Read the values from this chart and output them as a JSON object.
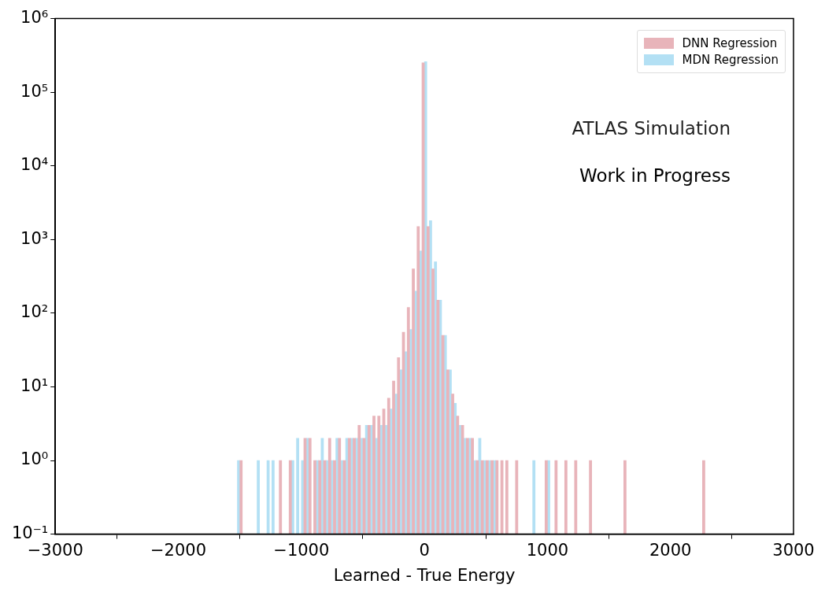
{
  "chart_data": {
    "type": "histogram",
    "xlabel": "Learned - True Energy",
    "bins": [
      -1580,
      -1540,
      -1500,
      -1460,
      -1420,
      -1380,
      -1340,
      -1300,
      -1260,
      -1220,
      -1180,
      -1140,
      -1100,
      -1060,
      -1020,
      -980,
      -940,
      -900,
      -860,
      -820,
      -780,
      -740,
      -700,
      -660,
      -620,
      -580,
      -540,
      -500,
      -460,
      -420,
      -380,
      -340,
      -300,
      -260,
      -220,
      -180,
      -140,
      -100,
      -60,
      -20,
      20,
      60,
      100,
      140,
      180,
      220,
      260,
      300,
      340,
      380,
      420,
      460,
      500,
      540,
      580,
      620,
      660,
      700,
      740,
      780,
      820,
      860,
      900,
      940,
      980,
      1020,
      1060,
      1100,
      1140,
      1180,
      1220,
      1260,
      1300,
      1340,
      1380,
      1420,
      1460,
      1500,
      1540,
      1580,
      1620,
      1660,
      1700,
      1740,
      1780,
      1820,
      1860,
      1900,
      1940,
      1980,
      2020,
      2060,
      2100,
      2140,
      2180,
      2220,
      2260,
      2300
    ],
    "series": [
      {
        "name": "DNN Regression",
        "color": "#e8b4ba",
        "values": [
          null,
          null,
          1,
          null,
          null,
          null,
          null,
          null,
          null,
          null,
          1,
          null,
          1,
          null,
          null,
          2,
          2,
          1,
          1,
          1,
          2,
          1,
          2,
          1,
          2,
          2,
          3,
          2,
          3,
          4,
          4,
          5,
          7,
          12,
          25,
          55,
          120,
          400,
          1500,
          250000,
          1500,
          400,
          150,
          50,
          17,
          8,
          4,
          3,
          2,
          2,
          1,
          1,
          1,
          1,
          1,
          1,
          1,
          null,
          1,
          null,
          null,
          null,
          null,
          null,
          1,
          null,
          1,
          null,
          1,
          null,
          1,
          null,
          null,
          1,
          null,
          null,
          null,
          null,
          null,
          null,
          1,
          null,
          null,
          null,
          null,
          null,
          null,
          null,
          null,
          null,
          null,
          null,
          null,
          null,
          null,
          null,
          1
        ]
      },
      {
        "name": "MDN Regression",
        "color": "#b3e0f4",
        "values": [
          null,
          1,
          null,
          null,
          null,
          1,
          null,
          1,
          1,
          null,
          null,
          null,
          1,
          2,
          1,
          2,
          null,
          1,
          2,
          1,
          1,
          2,
          1,
          2,
          2,
          2,
          2,
          3,
          3,
          2,
          3,
          3,
          5,
          8,
          17,
          30,
          60,
          200,
          700,
          260000,
          1800,
          500,
          150,
          50,
          17,
          6,
          3,
          2,
          2,
          1,
          2,
          1,
          1,
          1,
          null,
          null,
          null,
          null,
          null,
          null,
          null,
          1,
          null,
          null,
          1,
          null,
          null,
          null,
          null,
          null,
          null,
          null,
          null,
          null,
          null,
          null,
          null,
          null,
          null,
          null,
          null,
          null,
          null,
          null,
          null,
          null,
          null,
          null,
          null,
          null,
          null,
          null,
          null,
          null,
          null,
          null,
          null
        ]
      }
    ],
    "xlim": [
      -3000,
      3000
    ],
    "xticks": [
      {
        "value": -3000,
        "label": "−3000"
      },
      {
        "value": -2000,
        "label": "−2000"
      },
      {
        "value": -1000,
        "label": "−1000"
      },
      0,
      1000,
      2000,
      3000
    ],
    "ylim": [
      0.1,
      1000000
    ],
    "yticks": [
      {
        "value": 0.1,
        "label": "10⁻¹"
      },
      {
        "value": 1,
        "label": "10⁰"
      },
      {
        "value": 10,
        "label": "10¹"
      },
      {
        "value": 100,
        "label": "10²"
      },
      {
        "value": 1000,
        "label": "10³"
      },
      {
        "value": 10000,
        "label": "10⁴"
      },
      {
        "value": 100000,
        "label": "10⁵"
      },
      {
        "value": 1000000,
        "label": "10⁶"
      }
    ],
    "log": true,
    "legend": "top right",
    "annotations": [
      "ATLAS Simulation",
      "Work in Progress"
    ]
  }
}
